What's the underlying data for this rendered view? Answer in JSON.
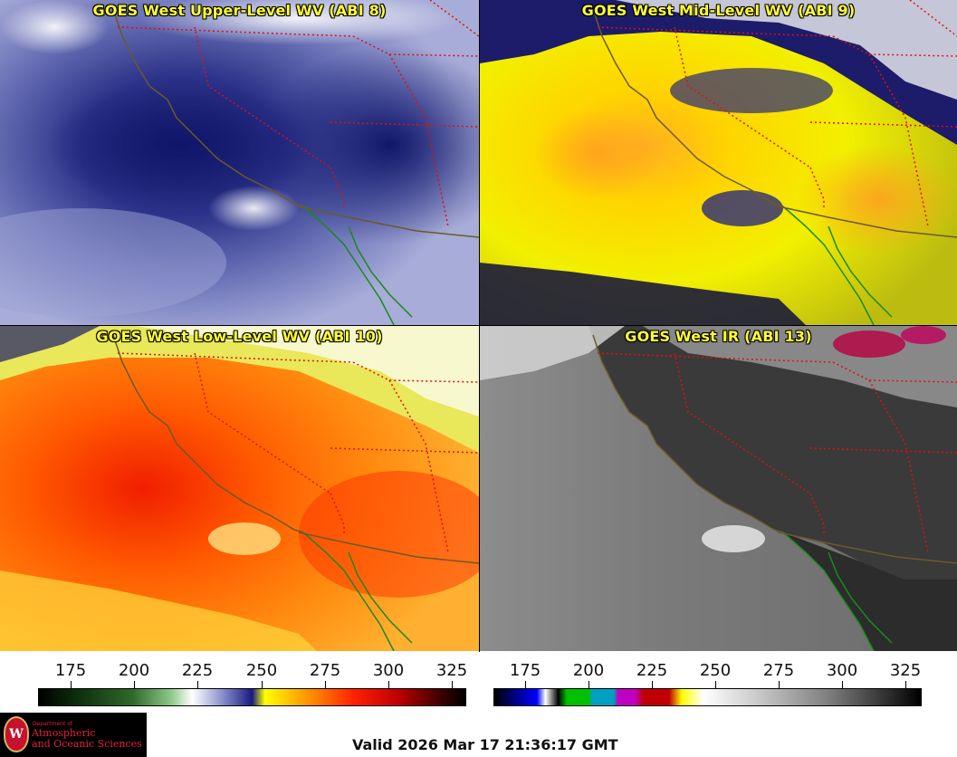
{
  "panels": [
    {
      "title": "GOES West Upper-Level WV (ABI 8)"
    },
    {
      "title": "GOES West Mid-Level WV (ABI 9)"
    },
    {
      "title": "GOES West Low-Level WV (ABI 10)"
    },
    {
      "title": "GOES West IR (ABI 13)"
    }
  ],
  "colorbar_left": {
    "ticks": [
      "175",
      "200",
      "225",
      "250",
      "275",
      "300",
      "325"
    ]
  },
  "colorbar_right": {
    "ticks": [
      "175",
      "200",
      "225",
      "250",
      "275",
      "300",
      "325"
    ]
  },
  "logo": {
    "dept": "Department of",
    "line1": "Atmospheric",
    "line2": "and Oceanic Sciences"
  },
  "valid_time": "Valid 2026 Mar 17 21:36:17 GMT",
  "colors": {
    "title_text": "#ffff33",
    "coast": "#6b5a2a",
    "border_mexico": "#1a8a1a",
    "state_lines": "#e01010"
  }
}
